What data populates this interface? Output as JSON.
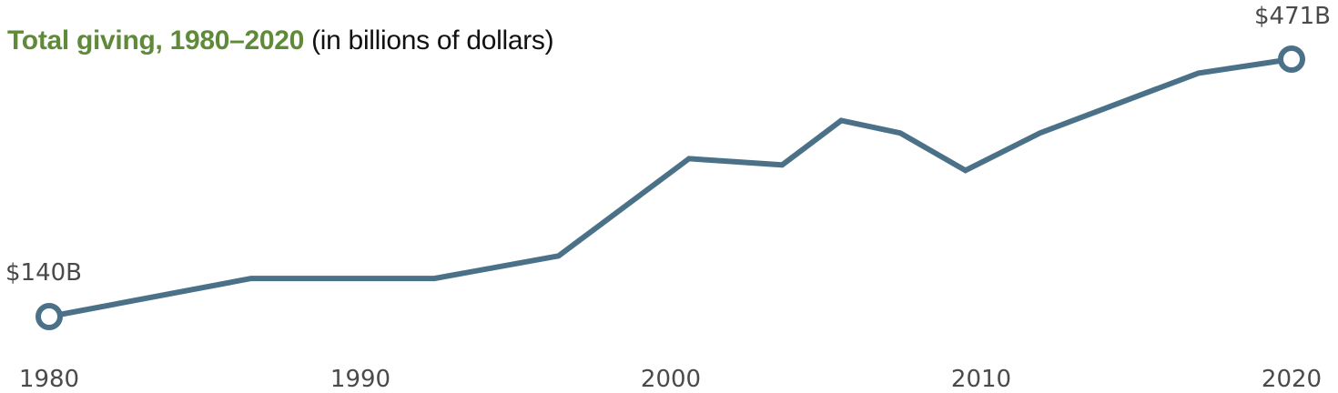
{
  "title": {
    "main": "Total giving, 1980–2020",
    "sub": "(in billions of dollars)"
  },
  "colors": {
    "line": "#4b7188",
    "title_accent": "#5f8a3a",
    "text": "#4a4a4a"
  },
  "chart_data": {
    "type": "line",
    "title": "Total giving, 1980–2020 (in billions of dollars)",
    "xlabel": "",
    "ylabel": "Billions of dollars",
    "x_ticks": [
      1980,
      1990,
      2000,
      2010,
      2020
    ],
    "xlim": [
      1980,
      2020
    ],
    "grid": false,
    "legend": "none",
    "series": [
      {
        "name": "Total giving",
        "x": [
          1980,
          1986.5,
          1992.4,
          1996.4,
          2000.6,
          2003.6,
          2005.5,
          2007.4,
          2009.5,
          2011.9,
          2017.0,
          2020
        ],
        "values": [
          140,
          189,
          189,
          218,
          343,
          335,
          392,
          376,
          328,
          376,
          453,
          471
        ]
      }
    ],
    "annotations": [
      {
        "x": 1980,
        "y": 140,
        "text": "$140B"
      },
      {
        "x": 2020,
        "y": 471,
        "text": "$471B"
      }
    ]
  },
  "labels": {
    "start": "$140B",
    "end": "$471B",
    "ticks": [
      "1980",
      "1990",
      "2000",
      "2010",
      "2020"
    ]
  }
}
